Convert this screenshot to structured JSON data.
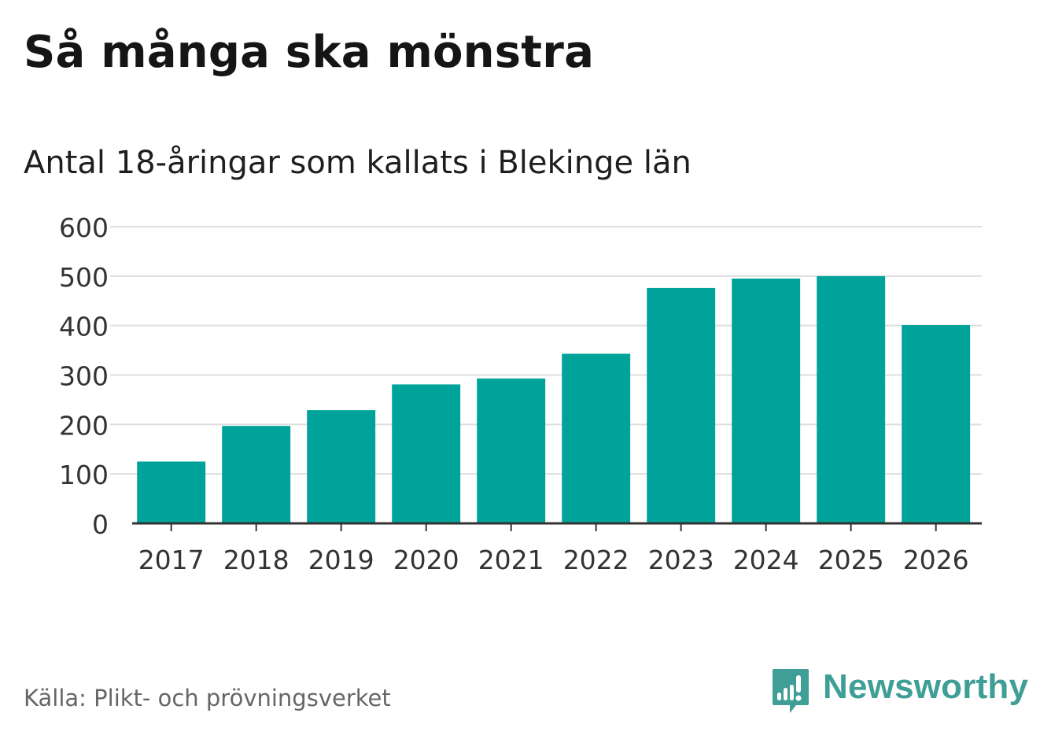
{
  "chart_data": {
    "type": "bar",
    "title": "Så många ska mönstra",
    "subtitle": "Antal 18-åringar som kallats i Blekinge län",
    "categories": [
      "2017",
      "2018",
      "2019",
      "2020",
      "2021",
      "2022",
      "2023",
      "2024",
      "2025",
      "2026"
    ],
    "values": [
      125,
      197,
      229,
      281,
      293,
      343,
      476,
      495,
      500,
      401
    ],
    "yticks": [
      0,
      100,
      200,
      300,
      400,
      500,
      600
    ],
    "ylim": [
      0,
      600
    ],
    "xlabel": "",
    "ylabel": "",
    "grid": true,
    "bar_color": "#00a39a",
    "grid_color": "#dedede",
    "axis_color": "#333333",
    "source": "Källa: Plikt- och prövningsverket"
  },
  "brand": {
    "name": "Newsworthy",
    "color": "#3f9e95",
    "icon": "newsworthy-chart-bubble-icon"
  }
}
